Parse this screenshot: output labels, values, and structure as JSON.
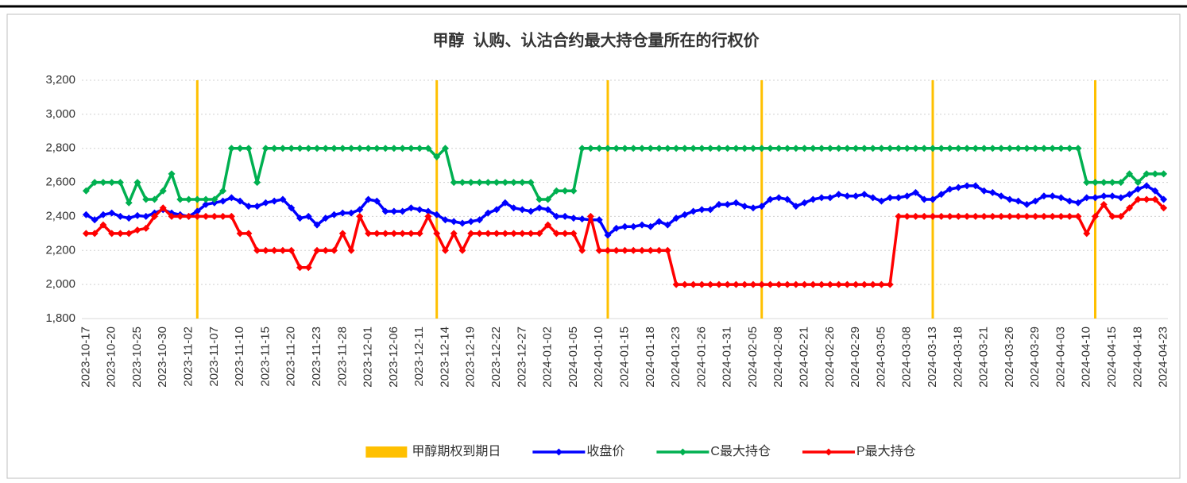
{
  "chart_data": {
    "type": "line",
    "title": "甲醇  认购、认沽合约最大持仓量所在的行权价",
    "categories": [
      "2023-10-17",
      null,
      null,
      "2023-10-20",
      null,
      null,
      "2023-10-25",
      null,
      null,
      "2023-10-30",
      null,
      null,
      "2023-11-02",
      null,
      null,
      "2023-11-07",
      null,
      null,
      "2023-11-10",
      null,
      null,
      "2023-11-15",
      null,
      null,
      "2023-11-20",
      null,
      null,
      "2023-11-23",
      null,
      null,
      "2023-11-28",
      null,
      null,
      "2023-12-01",
      null,
      null,
      "2023-12-06",
      null,
      null,
      "2023-12-11",
      null,
      null,
      "2023-12-14",
      null,
      null,
      "2023-12-19",
      null,
      null,
      "2023-12-22",
      null,
      null,
      "2023-12-27",
      null,
      null,
      "2024-01-02",
      null,
      null,
      "2024-01-05",
      null,
      null,
      "2024-01-10",
      null,
      null,
      "2024-01-15",
      null,
      null,
      "2024-01-18",
      null,
      null,
      "2024-01-23",
      null,
      null,
      "2024-01-26",
      null,
      null,
      "2024-01-31",
      null,
      null,
      "2024-02-05",
      null,
      null,
      "2024-02-08",
      null,
      null,
      "2024-02-21",
      null,
      null,
      "2024-02-26",
      null,
      null,
      "2024-02-29",
      null,
      null,
      "2024-03-05",
      null,
      null,
      "2024-03-08",
      null,
      null,
      "2024-03-13",
      null,
      null,
      "2024-03-18",
      null,
      null,
      "2024-03-21",
      null,
      null,
      "2024-03-26",
      null,
      null,
      "2024-03-29",
      null,
      null,
      "2024-04-03",
      null,
      null,
      "2024-04-10",
      null,
      null,
      "2024-04-15",
      null,
      null,
      "2024-04-18",
      null,
      null,
      "2024-04-23"
    ],
    "ylim": [
      1800,
      3200
    ],
    "yticks": [
      {
        "value": 1800,
        "label": "1,800"
      },
      {
        "value": 2000,
        "label": "2,000"
      },
      {
        "value": 2200,
        "label": "2,200"
      },
      {
        "value": 2400,
        "label": "2,400"
      },
      {
        "value": 2600,
        "label": "2,600"
      },
      {
        "value": 2800,
        "label": "2,800"
      },
      {
        "value": 3000,
        "label": "3,000"
      },
      {
        "value": 3200,
        "label": "3,200"
      }
    ],
    "grid": true,
    "legend": "bottom",
    "series": [
      {
        "name": "甲醇期权到期日",
        "type": "bar",
        "color": "#ffc000",
        "values": [
          null,
          null,
          null,
          null,
          null,
          null,
          null,
          null,
          null,
          null,
          null,
          null,
          null,
          3200,
          null,
          null,
          null,
          null,
          null,
          null,
          null,
          null,
          null,
          null,
          null,
          null,
          null,
          null,
          null,
          null,
          null,
          null,
          null,
          null,
          null,
          null,
          null,
          null,
          null,
          null,
          null,
          3200,
          null,
          null,
          null,
          null,
          null,
          null,
          null,
          null,
          null,
          null,
          null,
          null,
          null,
          null,
          null,
          null,
          null,
          null,
          null,
          3200,
          null,
          null,
          null,
          null,
          null,
          null,
          null,
          null,
          null,
          null,
          null,
          null,
          null,
          null,
          null,
          null,
          null,
          3200,
          null,
          null,
          null,
          null,
          null,
          null,
          null,
          null,
          null,
          null,
          null,
          null,
          null,
          null,
          null,
          null,
          null,
          null,
          null,
          3200,
          null,
          null,
          null,
          null,
          null,
          null,
          null,
          null,
          null,
          null,
          null,
          null,
          null,
          null,
          null,
          null,
          null,
          null,
          3200,
          null,
          null,
          null,
          null,
          null,
          null,
          null,
          null
        ]
      },
      {
        "name": "收盘价",
        "type": "line",
        "color": "#0000ff",
        "values": [
          2410,
          2380,
          2410,
          2420,
          2400,
          2390,
          2405,
          2400,
          2420,
          2440,
          2420,
          2410,
          2400,
          2430,
          2470,
          2480,
          2490,
          2510,
          2490,
          2460,
          2460,
          2480,
          2490,
          2500,
          2450,
          2390,
          2400,
          2350,
          2390,
          2410,
          2420,
          2420,
          2440,
          2500,
          2490,
          2430,
          2430,
          2430,
          2450,
          2440,
          2430,
          2410,
          2380,
          2370,
          2360,
          2370,
          2380,
          2420,
          2440,
          2480,
          2450,
          2440,
          2430,
          2450,
          2440,
          2400,
          2400,
          2390,
          2385,
          2380,
          2380,
          2290,
          2330,
          2340,
          2340,
          2350,
          2340,
          2370,
          2350,
          2390,
          2410,
          2430,
          2440,
          2440,
          2470,
          2470,
          2480,
          2460,
          2450,
          2460,
          2500,
          2510,
          2500,
          2460,
          2480,
          2500,
          2510,
          2510,
          2530,
          2520,
          2520,
          2530,
          2510,
          2490,
          2510,
          2510,
          2520,
          2540,
          2500,
          2500,
          2530,
          2560,
          2570,
          2580,
          2580,
          2550,
          2540,
          2520,
          2500,
          2490,
          2470,
          2490,
          2520,
          2520,
          2510,
          2490,
          2480,
          2510,
          2510,
          2520,
          2520,
          2510,
          2530,
          2560,
          2580,
          2550,
          2500
        ]
      },
      {
        "name": "C最大持仓",
        "type": "line",
        "color": "#00b050",
        "values": [
          2550,
          2600,
          2600,
          2600,
          2600,
          2480,
          2600,
          2500,
          2500,
          2550,
          2650,
          2500,
          2500,
          2500,
          2500,
          2500,
          2550,
          2800,
          2800,
          2800,
          2600,
          2800,
          2800,
          2800,
          2800,
          2800,
          2800,
          2800,
          2800,
          2800,
          2800,
          2800,
          2800,
          2800,
          2800,
          2800,
          2800,
          2800,
          2800,
          2800,
          2800,
          2750,
          2800,
          2600,
          2600,
          2600,
          2600,
          2600,
          2600,
          2600,
          2600,
          2600,
          2600,
          2500,
          2500,
          2550,
          2550,
          2550,
          2800,
          2800,
          2800,
          2800,
          2800,
          2800,
          2800,
          2800,
          2800,
          2800,
          2800,
          2800,
          2800,
          2800,
          2800,
          2800,
          2800,
          2800,
          2800,
          2800,
          2800,
          2800,
          2800,
          2800,
          2800,
          2800,
          2800,
          2800,
          2800,
          2800,
          2800,
          2800,
          2800,
          2800,
          2800,
          2800,
          2800,
          2800,
          2800,
          2800,
          2800,
          2800,
          2800,
          2800,
          2800,
          2800,
          2800,
          2800,
          2800,
          2800,
          2800,
          2800,
          2800,
          2800,
          2800,
          2800,
          2800,
          2800,
          2800,
          2600,
          2600,
          2600,
          2600,
          2600,
          2650,
          2600,
          2650,
          2650,
          2650
        ]
      },
      {
        "name": "P最大持仓",
        "type": "line",
        "color": "#ff0000",
        "values": [
          2300,
          2300,
          2350,
          2300,
          2300,
          2300,
          2320,
          2330,
          2400,
          2450,
          2400,
          2400,
          2400,
          2400,
          2400,
          2400,
          2400,
          2400,
          2300,
          2300,
          2200,
          2200,
          2200,
          2200,
          2200,
          2100,
          2100,
          2200,
          2200,
          2200,
          2300,
          2200,
          2400,
          2300,
          2300,
          2300,
          2300,
          2300,
          2300,
          2300,
          2400,
          2300,
          2200,
          2300,
          2200,
          2300,
          2300,
          2300,
          2300,
          2300,
          2300,
          2300,
          2300,
          2300,
          2350,
          2300,
          2300,
          2300,
          2200,
          2400,
          2200,
          2200,
          2200,
          2200,
          2200,
          2200,
          2200,
          2200,
          2200,
          2000,
          2000,
          2000,
          2000,
          2000,
          2000,
          2000,
          2000,
          2000,
          2000,
          2000,
          2000,
          2000,
          2000,
          2000,
          2000,
          2000,
          2000,
          2000,
          2000,
          2000,
          2000,
          2000,
          2000,
          2000,
          2000,
          2400,
          2400,
          2400,
          2400,
          2400,
          2400,
          2400,
          2400,
          2400,
          2400,
          2400,
          2400,
          2400,
          2400,
          2400,
          2400,
          2400,
          2400,
          2400,
          2400,
          2400,
          2400,
          2300,
          2400,
          2470,
          2400,
          2400,
          2450,
          2500,
          2500,
          2500,
          2450
        ]
      }
    ]
  }
}
